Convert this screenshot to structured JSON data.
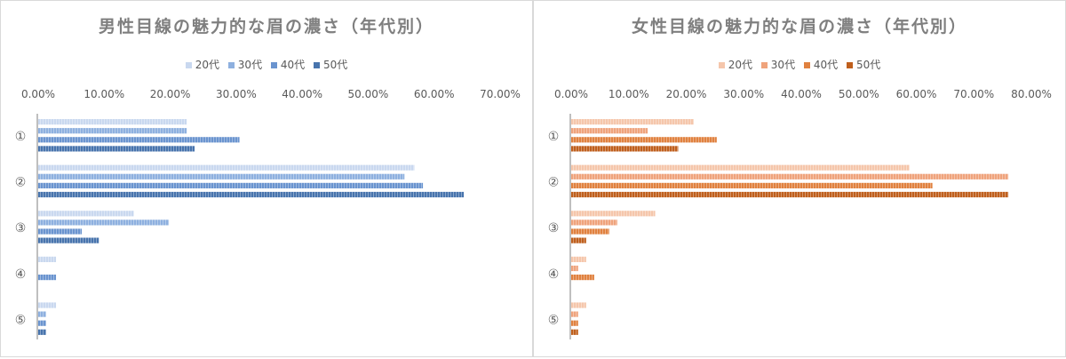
{
  "chart_data": [
    {
      "type": "bar",
      "orientation": "horizontal",
      "title": "男性目線の魅力的な眉の濃さ（年代別）",
      "categories": [
        "①",
        "②",
        "③",
        "④",
        "⑤"
      ],
      "series": [
        {
          "name": "20代",
          "values": [
            0.225,
            0.57,
            0.145,
            0.027,
            0.027
          ]
        },
        {
          "name": "30代",
          "values": [
            0.225,
            0.555,
            0.198,
            0.0,
            0.012
          ]
        },
        {
          "name": "40代",
          "values": [
            0.305,
            0.583,
            0.066,
            0.027,
            0.012
          ]
        },
        {
          "name": "50代",
          "values": [
            0.237,
            0.645,
            0.092,
            0.0,
            0.012
          ]
        }
      ],
      "xlim": [
        0,
        0.7
      ],
      "xticks": [
        "0.00%",
        "10.00%",
        "20.00%",
        "30.00%",
        "40.00%",
        "50.00%",
        "60.00%",
        "70.00%"
      ],
      "legend_position": "top",
      "colors": [
        "#c9d8ef",
        "#8eb0df",
        "#6a94cf",
        "#4874ad"
      ]
    },
    {
      "type": "bar",
      "orientation": "horizontal",
      "title": "女性目線の魅力的な眉の濃さ（年代別）",
      "categories": [
        "①",
        "②",
        "③",
        "④",
        "⑤"
      ],
      "series": [
        {
          "name": "20代",
          "values": [
            0.213,
            0.588,
            0.146,
            0.026,
            0.026
          ]
        },
        {
          "name": "30代",
          "values": [
            0.133,
            0.76,
            0.08,
            0.012,
            0.012
          ]
        },
        {
          "name": "40代",
          "values": [
            0.253,
            0.628,
            0.066,
            0.04,
            0.012
          ]
        },
        {
          "name": "50代",
          "values": [
            0.186,
            0.76,
            0.026,
            0.0,
            0.012
          ]
        }
      ],
      "xlim": [
        0,
        0.8
      ],
      "xticks": [
        "0.00%",
        "10.00%",
        "20.00%",
        "30.00%",
        "40.00%",
        "50.00%",
        "60.00%",
        "70.00%",
        "80.00%"
      ],
      "legend_position": "top",
      "colors": [
        "#f5c6ab",
        "#efa37c",
        "#e0813f",
        "#bf5f1d"
      ]
    }
  ]
}
